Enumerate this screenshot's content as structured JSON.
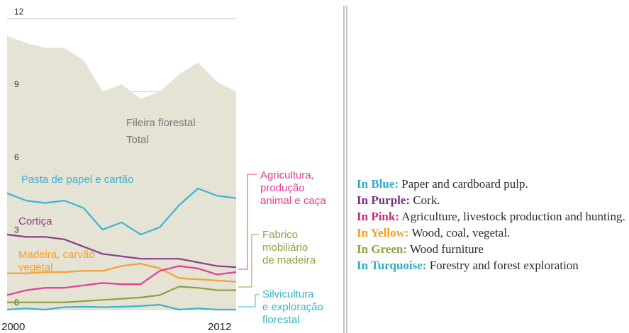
{
  "chart_data": {
    "type": "area",
    "x": [
      2000,
      2001,
      2002,
      2003,
      2004,
      2005,
      2006,
      2007,
      2008,
      2009,
      2010,
      2011,
      2012
    ],
    "x_tick_labels": [
      "2000",
      "2012"
    ],
    "y_ticks": [
      "12",
      "9",
      "6",
      "3",
      "0"
    ],
    "ylim": [
      0,
      12
    ],
    "grid": true,
    "total": {
      "label": "Fileira florestal\nTotal",
      "color": "#e4e3d4",
      "values": [
        11.3,
        11.0,
        10.8,
        10.8,
        10.3,
        9.0,
        9.3,
        8.7,
        9.0,
        9.7,
        10.2,
        9.4,
        9.0
      ]
    },
    "series": [
      {
        "key": "blue",
        "label": "Pasta de papel e cartão",
        "color": "#3bb3d6",
        "values": [
          4.8,
          4.5,
          4.4,
          4.5,
          4.2,
          3.3,
          3.6,
          3.1,
          3.4,
          4.3,
          5.0,
          4.7,
          4.6
        ]
      },
      {
        "key": "purple",
        "label": "Cortiça",
        "color": "#8c3d8c",
        "values": [
          3.1,
          3.0,
          3.0,
          2.9,
          2.6,
          2.3,
          2.2,
          2.1,
          2.1,
          2.1,
          1.95,
          1.8,
          1.75
        ]
      },
      {
        "key": "orange",
        "label": "Madeira, carvão\nvegetal",
        "color": "#f5a033",
        "values": [
          1.5,
          1.5,
          1.55,
          1.55,
          1.6,
          1.6,
          1.8,
          1.9,
          1.7,
          1.3,
          1.25,
          1.2,
          1.15
        ]
      },
      {
        "key": "pink",
        "label": "Agricultura,\nprodução\nanimal e caça",
        "color": "#e63c96",
        "values": [
          0.6,
          0.8,
          0.9,
          0.9,
          1.0,
          1.1,
          1.05,
          1.05,
          1.6,
          1.8,
          1.7,
          1.45,
          1.55
        ]
      },
      {
        "key": "green",
        "label": "Fabrico\nmobiliário\nde madeira",
        "color": "#8ca341",
        "values": [
          0.3,
          0.3,
          0.3,
          0.3,
          0.35,
          0.4,
          0.45,
          0.5,
          0.6,
          0.95,
          0.9,
          0.8,
          0.8
        ]
      },
      {
        "key": "turquoise",
        "label": "Silvicultura\ne exploração\nflorestal",
        "color": "#3bb3c8",
        "values": [
          0.0,
          0.05,
          0.0,
          0.1,
          0.12,
          0.1,
          0.12,
          0.15,
          0.2,
          0.0,
          0.05,
          0.0,
          0.0
        ]
      }
    ]
  },
  "legend": [
    {
      "key": "In Blue:",
      "text": " Paper and cardboard pulp.",
      "color": "#2eaac8"
    },
    {
      "key": "In Purple:",
      "text": " Cork.",
      "color": "#7a2f87"
    },
    {
      "key": "In Pink:",
      "text": " Agriculture, livestock production and hunting.",
      "color": "#c8297f"
    },
    {
      "key": "In Yellow:",
      "text": " Wood, coal, vegetal.",
      "color": "#f0a21a"
    },
    {
      "key": "In Green:",
      "text": " Wood furniture",
      "color": "#8ca341"
    },
    {
      "key": "In Turquoise:",
      "text": " Forestry and forest exploration",
      "color": "#2eaac8"
    }
  ]
}
